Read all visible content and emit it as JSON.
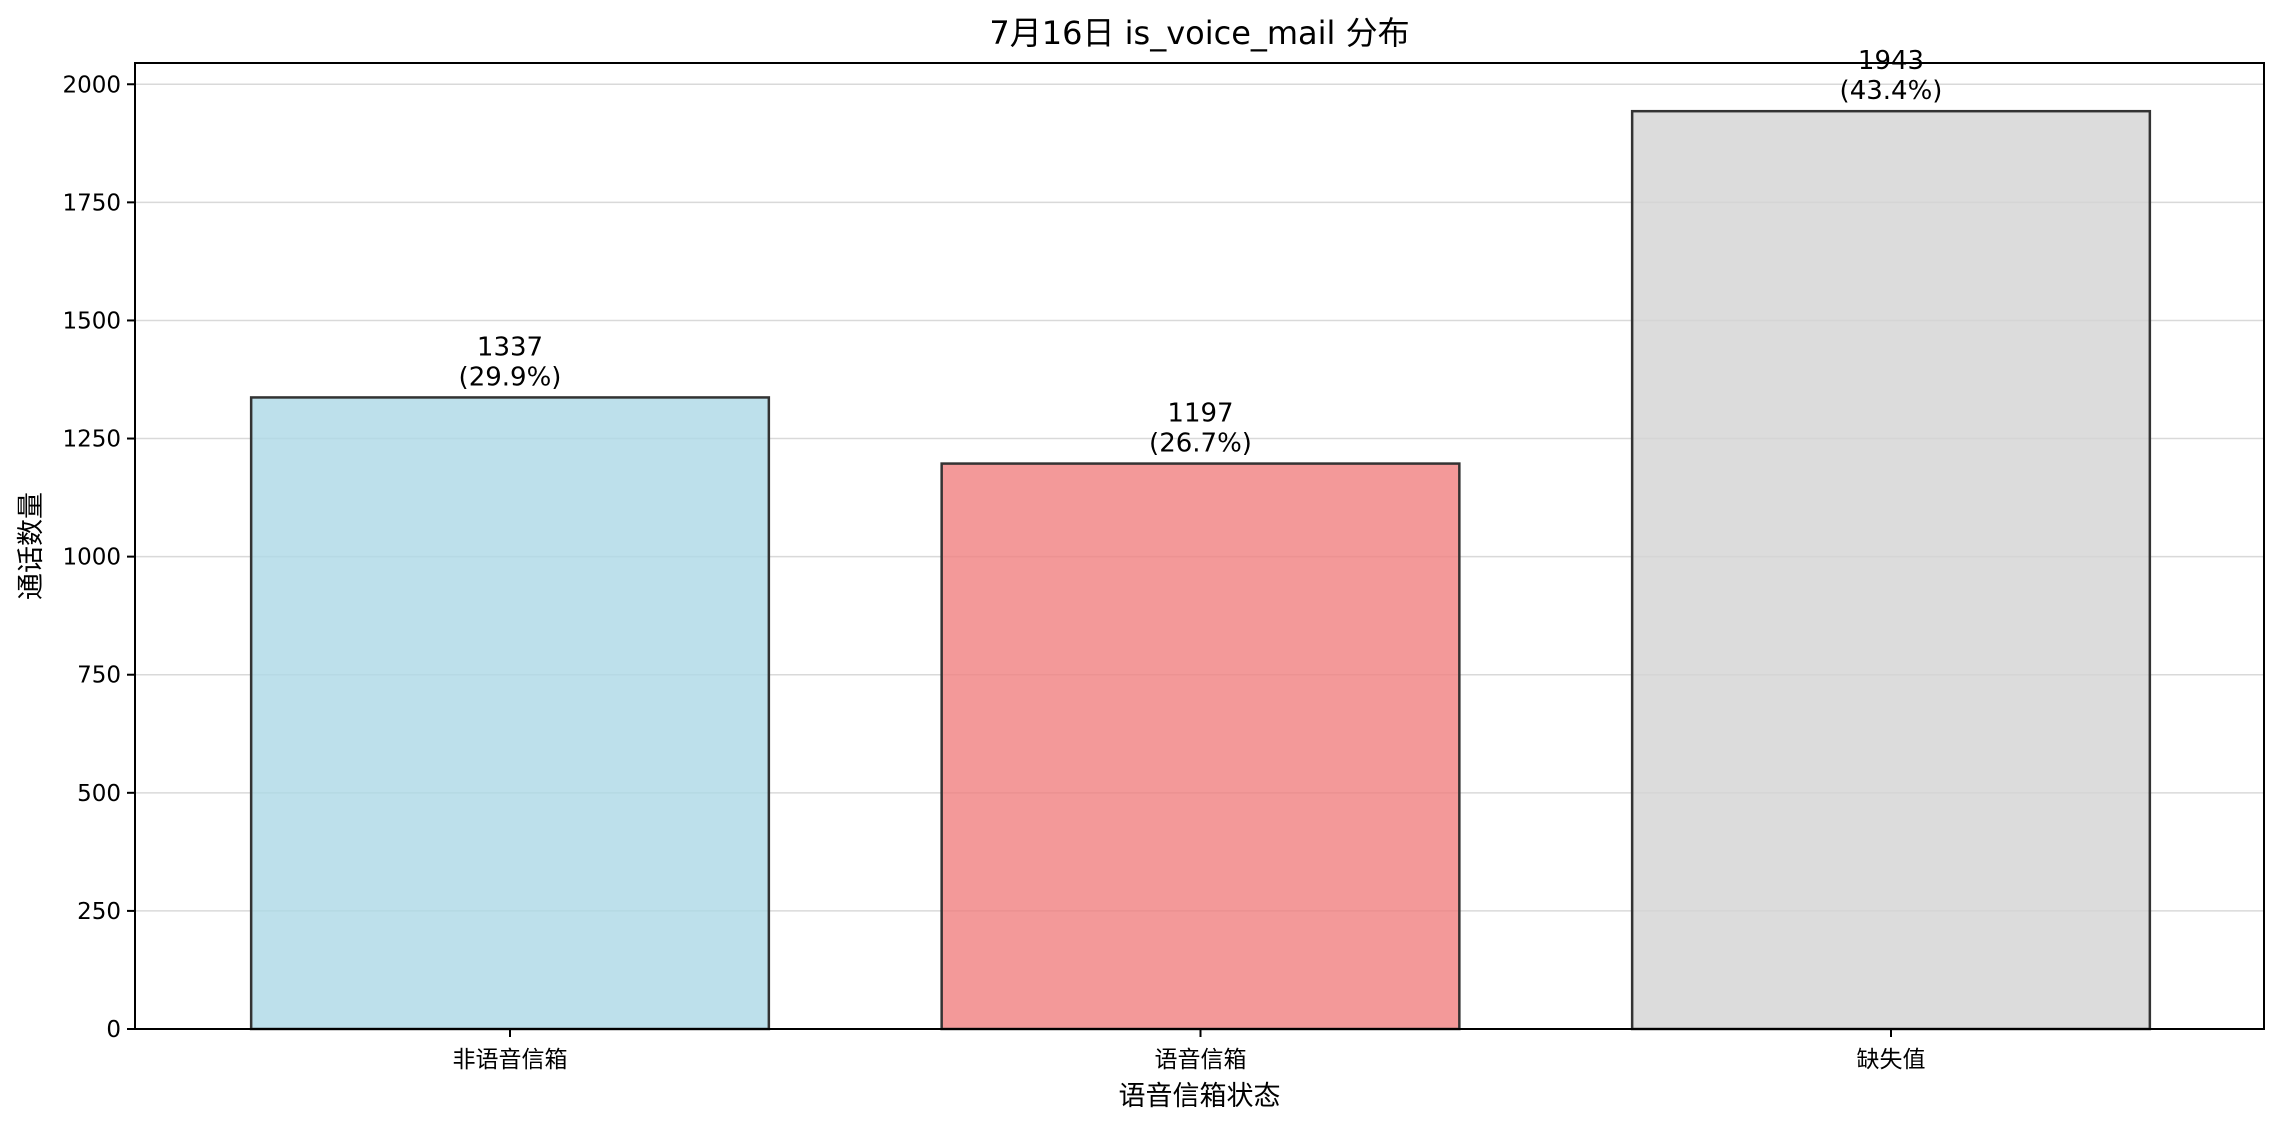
{
  "chart_data": {
    "type": "bar",
    "title": "7月16日 is_voice_mail 分布",
    "xlabel": "语音信箱状态",
    "ylabel": "通话数量",
    "categories": [
      "非语音信箱",
      "语音信箱",
      "缺失值"
    ],
    "values": [
      1337,
      1197,
      1943
    ],
    "value_labels": [
      "1337",
      "1197",
      "1943"
    ],
    "percent_labels": [
      "(29.9%)",
      "(26.7%)",
      "(43.4%)"
    ],
    "colors": [
      "#add8e6",
      "#f08080",
      "#d3d3d3"
    ],
    "ylim": [
      0,
      2045
    ],
    "yticks": [
      0,
      250,
      500,
      750,
      1000,
      1250,
      1500,
      1750,
      2000
    ],
    "ytick_labels": [
      "0",
      "250",
      "500",
      "750",
      "1000",
      "1250",
      "1500",
      "1750",
      "2000"
    ],
    "grid": "y",
    "legend": "none"
  }
}
